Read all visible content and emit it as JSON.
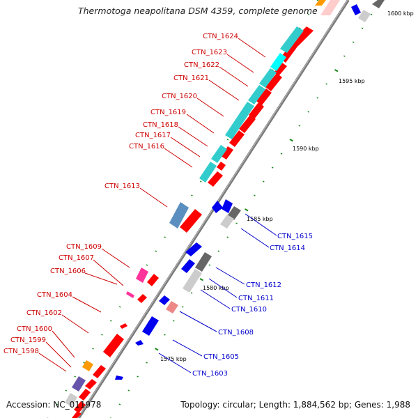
{
  "title": "Thermotoga neapolitana DSM 4359, complete genome",
  "accession": "Accession: NC_011978",
  "summary": "Topology: circular; Length: 1,884,562 bp; Genes: 1,988",
  "ticks": [
    {
      "label": "1600 kbp"
    },
    {
      "label": "1595 kbp"
    },
    {
      "label": "1590 kbp"
    },
    {
      "label": "1585 kbp"
    },
    {
      "label": "1580 kbp"
    },
    {
      "label": "1575 kbp"
    }
  ],
  "left_genes": [
    {
      "label": "CTN_1624"
    },
    {
      "label": "CTN_1623"
    },
    {
      "label": "CTN_1622"
    },
    {
      "label": "CTN_1621"
    },
    {
      "label": "CTN_1620"
    },
    {
      "label": "CTN_1619"
    },
    {
      "label": "CTN_1618"
    },
    {
      "label": "CTN_1617"
    },
    {
      "label": "CTN_1616"
    },
    {
      "label": "CTN_1613"
    },
    {
      "label": "CTN_1609"
    },
    {
      "label": "CTN_1607"
    },
    {
      "label": "CTN_1606"
    },
    {
      "label": "CTN_1604"
    },
    {
      "label": "CTN_1602"
    },
    {
      "label": "CTN_1600"
    },
    {
      "label": "CTN_1599"
    },
    {
      "label": "CTN_1598"
    }
  ],
  "right_genes": [
    {
      "label": "CTN_1615"
    },
    {
      "label": "CTN_1614"
    },
    {
      "label": "CTN_1612"
    },
    {
      "label": "CTN_1611"
    },
    {
      "label": "CTN_1610"
    },
    {
      "label": "CTN_1608"
    },
    {
      "label": "CTN_1605"
    },
    {
      "label": "CTN_1603"
    }
  ],
  "colors": {
    "forward_cds": "#ff0000",
    "reverse_cds": "#0000ee",
    "cog_cyan": "#33cccc",
    "cog_steel": "#5b8fbf",
    "cog_magenta": "#ff3399",
    "cog_gray": "#999999",
    "cog_orange": "#ff9900",
    "cog_purple": "#6655aa",
    "tick_green": "#1a8a1a",
    "left_label": "#cc0000",
    "right_label": "#0000cc"
  }
}
